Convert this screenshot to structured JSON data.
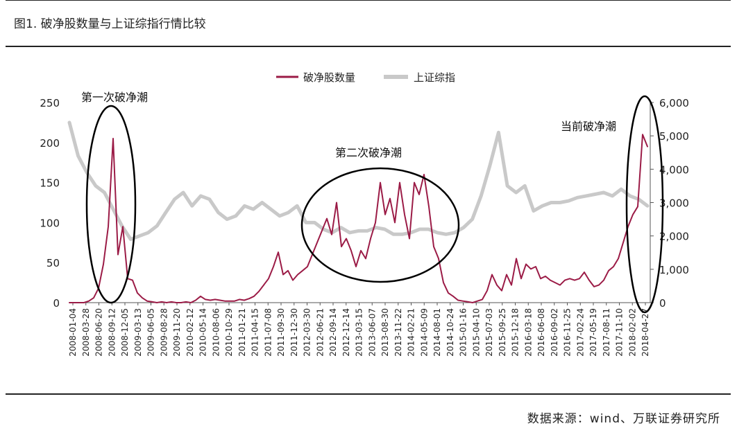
{
  "header": {
    "title": "图1. 破净股数量与上证综指行情比较"
  },
  "footer": {
    "source": "数据来源：wind、万联证券研究所"
  },
  "colors": {
    "broken_net_series": "#9b1b46",
    "sse_series": "#c9c9c9",
    "annotation": "#000000"
  },
  "annotations": [
    {
      "label": "第一次破净潮"
    },
    {
      "label": "第二次破净潮"
    },
    {
      "label": "当前破净潮"
    }
  ],
  "chart_data": {
    "type": "line",
    "legend": "top-center",
    "grid": false,
    "y_left": {
      "ticks": [
        "0",
        "50",
        "100",
        "150",
        "200",
        "250"
      ],
      "range": [
        0,
        250
      ]
    },
    "y_right": {
      "ticks": [
        "0",
        "1,000",
        "2,000",
        "3,000",
        "4,000",
        "5,000",
        "6,000"
      ],
      "range": [
        0,
        6000
      ]
    },
    "x_ticks": [
      "2008-01-04",
      "2008-03-28",
      "2008-06-20",
      "2008-09-12",
      "2008-12-05",
      "2009-03-13",
      "2009-06-05",
      "2009-08-28",
      "2009-11-20",
      "2010-02-12",
      "2010-05-14",
      "2010-08-06",
      "2010-10-29",
      "2011-01-21",
      "2011-04-15",
      "2011-07-08",
      "2011-09-30",
      "2011-12-30",
      "2012-03-30",
      "2012-06-21",
      "2012-09-14",
      "2012-12-14",
      "2013-03-15",
      "2013-06-07",
      "2013-08-30",
      "2013-11-22",
      "2014-02-21",
      "2014-05-09",
      "2014-08-01",
      "2014-10-24",
      "2015-01-16",
      "2015-04-10",
      "2015-07-03",
      "2015-09-25",
      "2015-12-18",
      "2016-03-18",
      "2016-06-08",
      "2016-09-02",
      "2016-11-25",
      "2017-02-24",
      "2017-05-19",
      "2017-08-11",
      "2017-11-10",
      "2018-02-02",
      "2018-04-27"
    ],
    "series": [
      {
        "name": "破净股数量",
        "axis": "left",
        "values": [
          0,
          0,
          0,
          0,
          2,
          6,
          18,
          48,
          95,
          205,
          60,
          95,
          30,
          28,
          12,
          6,
          2,
          1,
          0,
          1,
          0,
          1,
          0,
          0,
          1,
          0,
          3,
          8,
          4,
          3,
          4,
          3,
          2,
          2,
          2,
          4,
          3,
          5,
          8,
          14,
          22,
          30,
          45,
          63,
          35,
          40,
          28,
          35,
          40,
          45,
          60,
          75,
          90,
          105,
          85,
          125,
          70,
          80,
          65,
          45,
          65,
          55,
          80,
          100,
          150,
          110,
          130,
          100,
          150,
          110,
          80,
          150,
          135,
          160,
          120,
          70,
          55,
          25,
          12,
          8,
          3,
          2,
          1,
          0,
          2,
          4,
          15,
          35,
          22,
          15,
          35,
          22,
          55,
          30,
          48,
          42,
          45,
          30,
          33,
          28,
          25,
          22,
          28,
          30,
          28,
          30,
          38,
          28,
          20,
          22,
          28,
          40,
          45,
          55,
          75,
          95,
          110,
          120,
          210,
          195
        ]
      },
      {
        "name": "上证综指",
        "axis": "right",
        "values": [
          5400,
          4400,
          3900,
          3500,
          3300,
          2800,
          2300,
          1900,
          2000,
          2100,
          2300,
          2700,
          3100,
          3300,
          2900,
          3200,
          3100,
          2700,
          2500,
          2600,
          2900,
          2800,
          3000,
          2800,
          2600,
          2700,
          2900,
          2400,
          2400,
          2200,
          2100,
          2250,
          2100,
          2150,
          2150,
          2250,
          2200,
          2050,
          2050,
          2100,
          2200,
          2200,
          2100,
          2050,
          2100,
          2250,
          2500,
          3200,
          4100,
          5100,
          3500,
          3300,
          3500,
          2750,
          2900,
          3000,
          3000,
          3050,
          3150,
          3200,
          3250,
          3300,
          3200,
          3400,
          3200,
          3100,
          2900
        ]
      }
    ]
  }
}
